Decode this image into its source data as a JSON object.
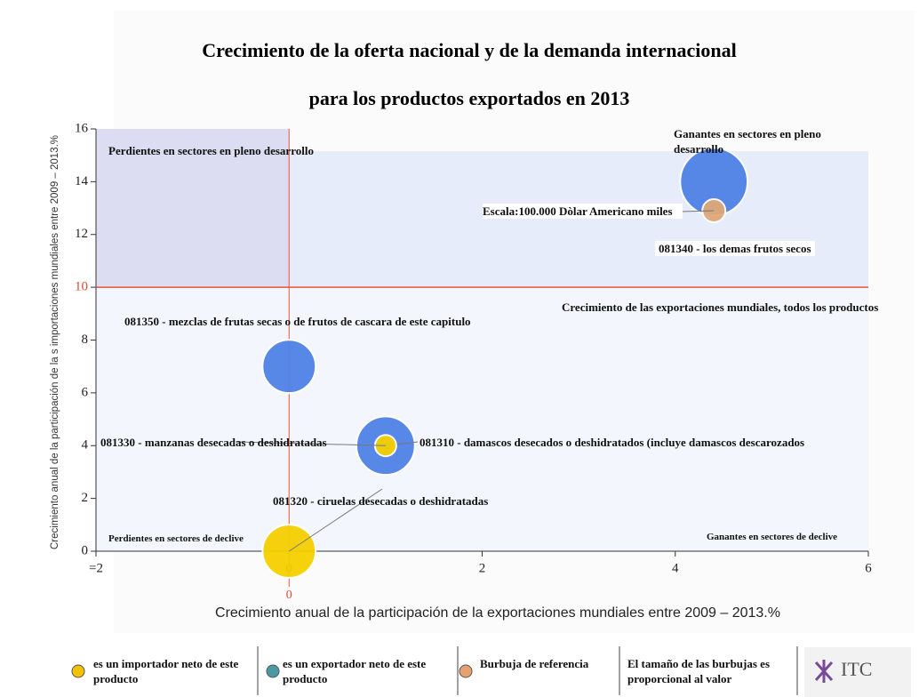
{
  "chart_data": {
    "type": "bubble",
    "title": [
      "Crecimiento de la oferta nacional y de la demanda internacional",
      "para los productos exportados en 2013"
    ],
    "x_label": "Crecimiento anual de la participación de la exportaciones mundiales entre 2009 – 2013.%",
    "y_label": "Crecimiento anual de la participación de la s importaciones mundiales entre 2009 – 2013.%",
    "xlim": [
      -2,
      6
    ],
    "ylim": [
      0,
      16
    ],
    "xticks": [
      {
        "value": -2,
        "label": "=2"
      },
      0,
      2,
      4,
      6
    ],
    "yticks": [
      0,
      2,
      4,
      6,
      8,
      10,
      12,
      14,
      16
    ],
    "reference_x": 0,
    "reference_y": 10,
    "reference_y_label": "Crecimiento de las exportaciones mundiales, todos los productos",
    "quadrant_labels": {
      "top_left": "Perdientes en sectores en pleno desarrollo",
      "top_right": "Ganantes en sectores en pleno desarrollo",
      "bottom_left": "Perdientes en sectores de declive",
      "bottom_right": "Ganantes en sectores de declive"
    },
    "series": [
      {
        "name": "es un importador neto de este producto",
        "color": "#f5d000",
        "legend_color": "#f2c200",
        "labels": [
          "081330 - manzanas desecadas o deshidratadas",
          "081320 - ciruelas desecadas o deshidratadas"
        ],
        "x": [
          1,
          0
        ],
        "values": [
          4,
          0
        ],
        "sizes": [
          85000,
          530000
        ]
      },
      {
        "name": "es un exportador neto de este producto",
        "color": "#4f82e6",
        "legend_color": "#4a9aa6",
        "labels": [
          "081350 - mezclas de frutas secas o de frutos de cascara de este capitulo",
          "081310 - damascos desecados o deshidratados (incluye damascos descarozados",
          "081340 - los demas frutos secos"
        ],
        "x": [
          0,
          1,
          4.4
        ],
        "values": [
          7,
          4,
          14
        ],
        "sizes": [
          530000,
          640000,
          850000
        ]
      },
      {
        "name": "Burbuja de referencia",
        "color": "#e0a878",
        "legend_color": "#e8a070",
        "labels": [
          "Escala:100.000 Dòlar Americano miles"
        ],
        "x": [
          4.4
        ],
        "values": [
          12.9
        ],
        "sizes": [
          100000
        ]
      }
    ],
    "size_note": "El tamaño de las burbujas es proporcional al valor",
    "logo": "ITC"
  }
}
